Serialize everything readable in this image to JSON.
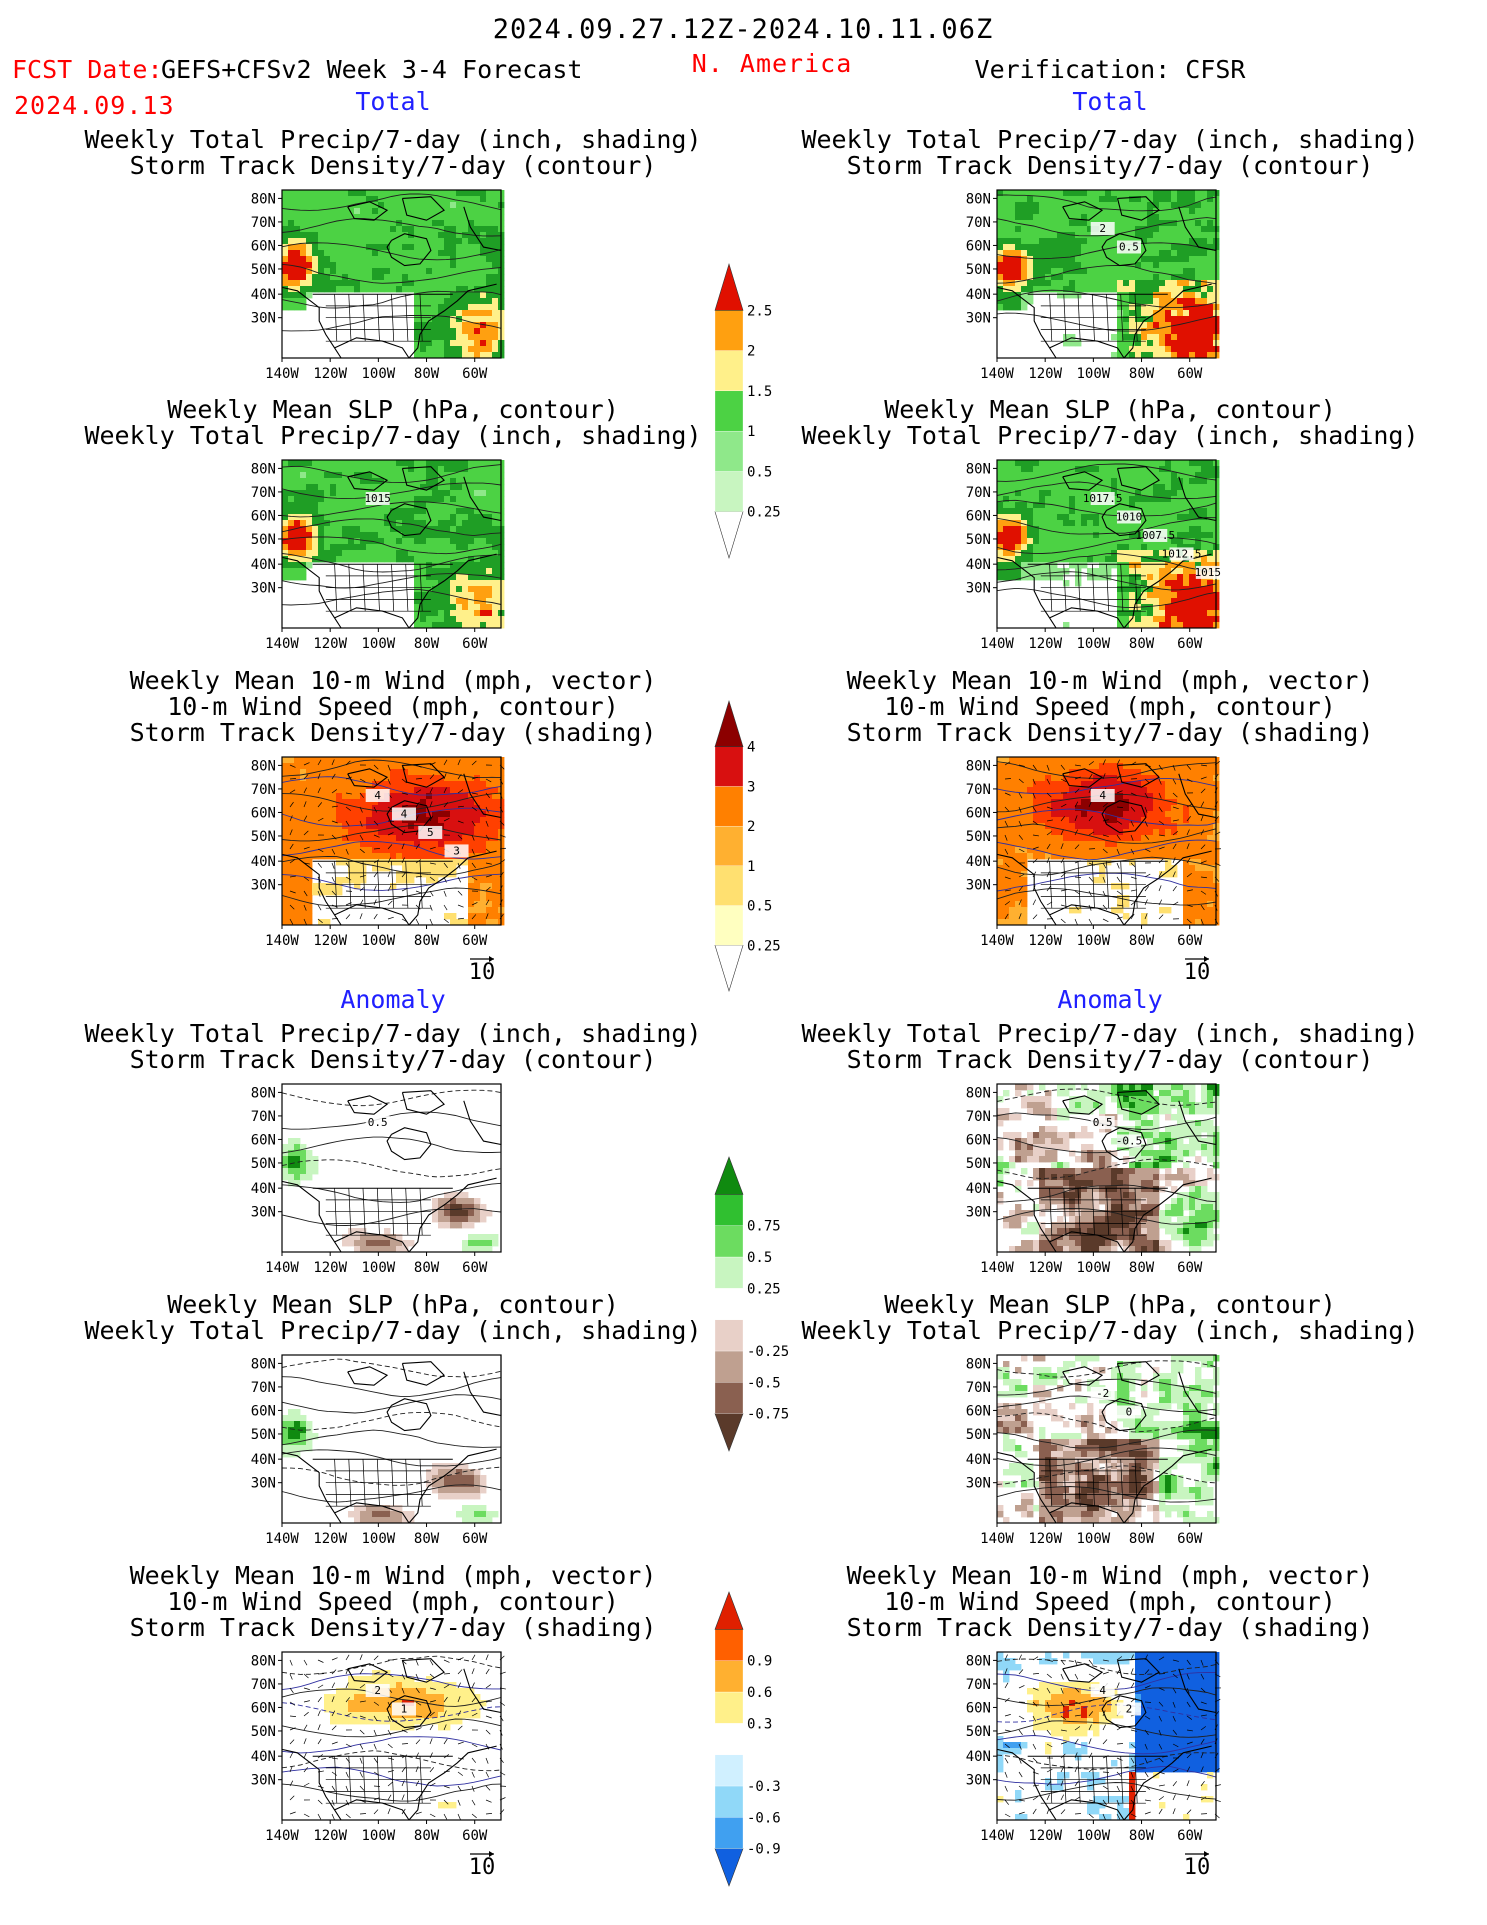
{
  "header": {
    "date_range": "2024.09.27.12Z-2024.10.11.06Z",
    "fcst_label": "FCST Date:",
    "model_label": "GEFS+CFSv2 Week 3-4 Forecast",
    "fcst_date": "2024.09.13",
    "region": "N. America",
    "verification": "Verification: CFSR"
  },
  "sections": {
    "total": "Total",
    "anomaly": "Anomaly"
  },
  "titles": {
    "precip_track": [
      "Weekly Total Precip/7-day (inch, shading)",
      "Storm Track Density/7-day (contour)"
    ],
    "slp_precip": [
      "Weekly Mean SLP (hPa, contour)",
      "Weekly Total Precip/7-day (inch, shading)"
    ],
    "wind_track": [
      "Weekly Mean 10-m Wind (mph, vector)",
      "10-m Wind Speed (mph, contour)",
      "Storm Track Density/7-day (shading)"
    ]
  },
  "axes": {
    "lat_labels": [
      "80N",
      "70N",
      "60N",
      "50N",
      "40N",
      "30N"
    ],
    "lon_labels": [
      "140W",
      "120W",
      "100W",
      "80W",
      "60W"
    ]
  },
  "vector_ref": "10",
  "colors": {
    "title_red": "#ff0000",
    "section_blue": "#2020ff",
    "precip": [
      "#c8f5c0",
      "#8fe88a",
      "#4cd244",
      "#1f9e25",
      "#fff08a",
      "#ffa010",
      "#e01000"
    ],
    "track": [
      "#ffffc0",
      "#ffe070",
      "#ffb030",
      "#ff8000",
      "#ff4000",
      "#d81010",
      "#8c0000"
    ],
    "precip_anom": [
      "#5a3a2a",
      "#8a6050",
      "#bfa090",
      "#e8d0c8",
      "#ffffff",
      "#c8f5c0",
      "#6cdc60",
      "#30c030",
      "#108a10"
    ],
    "track_anom": [
      "#1060e0",
      "#40a0f0",
      "#90d8f8",
      "#d0f0ff",
      "#ffffff",
      "#fff08a",
      "#ffb030",
      "#ff6000",
      "#e02000"
    ]
  },
  "chart_data": [
    {
      "id": "colorbar-precip",
      "type": "colorbar",
      "values": [
        "0.25",
        "0.5",
        "1",
        "1.5",
        "2",
        "2.5"
      ]
    },
    {
      "id": "colorbar-track",
      "type": "colorbar",
      "values": [
        "0.25",
        "0.5",
        "1",
        "2",
        "3",
        "4"
      ]
    },
    {
      "id": "colorbar-precip-anom",
      "type": "colorbar",
      "values": [
        "-0.75",
        "-0.5",
        "-0.25",
        "0.25",
        "0.5",
        "0.75"
      ]
    },
    {
      "id": "colorbar-track-anom",
      "type": "colorbar",
      "values": [
        "-0.9",
        "-0.6",
        "-0.3",
        "0.3",
        "0.6",
        "0.9"
      ]
    },
    {
      "id": "maps",
      "type": "heatmap",
      "panels": [
        {
          "name": "forecast-total-precip-track",
          "labels": []
        },
        {
          "name": "verification-total-precip-track",
          "labels": [
            "2",
            "0.5"
          ]
        },
        {
          "name": "forecast-total-slp-precip",
          "labels": [
            "1015"
          ]
        },
        {
          "name": "verification-total-slp-precip",
          "labels": [
            "1017.5",
            "1010",
            "1007.5",
            "1012.5",
            "1015"
          ]
        },
        {
          "name": "forecast-total-wind-track",
          "labels": [
            "4",
            "4",
            "5",
            "3"
          ]
        },
        {
          "name": "verification-total-wind-track",
          "labels": [
            "4"
          ]
        },
        {
          "name": "forecast-anomaly-precip-track",
          "labels": [
            "0.5"
          ]
        },
        {
          "name": "verification-anomaly-precip-track",
          "labels": [
            "0.5",
            "-0.5"
          ]
        },
        {
          "name": "forecast-anomaly-slp-precip",
          "labels": []
        },
        {
          "name": "verification-anomaly-slp-precip",
          "labels": [
            "-2",
            "0"
          ]
        },
        {
          "name": "forecast-anomaly-wind-track",
          "labels": [
            "2",
            "1"
          ]
        },
        {
          "name": "verification-anomaly-wind-track",
          "labels": [
            "4",
            "2"
          ]
        }
      ]
    }
  ]
}
